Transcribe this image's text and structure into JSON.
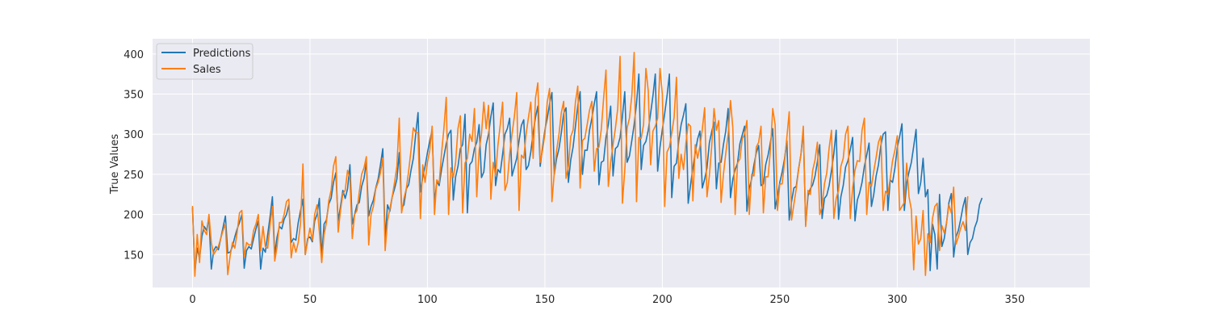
{
  "chart_data": {
    "type": "line",
    "title": "",
    "xlabel": "",
    "ylabel": "True Values",
    "xlim": [
      -17,
      382
    ],
    "ylim": [
      109,
      419
    ],
    "xticks": [
      0,
      50,
      100,
      150,
      200,
      250,
      300,
      350
    ],
    "yticks": [
      150,
      200,
      250,
      300,
      350,
      400
    ],
    "grid": true,
    "legend_position": "top-left",
    "x_start": 0,
    "x_step": 1,
    "series": [
      {
        "name": "Predictions",
        "color": "#1f77b4",
        "values": [
          208,
          128,
          158,
          145,
          173,
          185,
          180,
          197,
          132,
          155,
          160,
          156,
          170,
          184,
          198,
          152,
          153,
          160,
          172,
          182,
          190,
          200,
          133,
          155,
          160,
          157,
          170,
          182,
          192,
          132,
          158,
          153,
          175,
          197,
          222,
          150,
          172,
          185,
          182,
          194,
          200,
          212,
          165,
          170,
          168,
          190,
          205,
          219,
          150,
          170,
          172,
          166,
          192,
          200,
          220,
          148,
          188,
          193,
          213,
          220,
          240,
          252,
          192,
          210,
          230,
          220,
          232,
          262,
          188,
          200,
          212,
          215,
          235,
          245,
          265,
          198,
          210,
          218,
          233,
          244,
          262,
          282,
          168,
          212,
          204,
          222,
          232,
          244,
          277,
          208,
          212,
          232,
          237,
          255,
          270,
          300,
          327,
          228,
          246,
          260,
          277,
          292,
          305,
          214,
          241,
          236,
          256,
          272,
          288,
          300,
          305,
          218,
          247,
          260,
          282,
          287,
          325,
          202,
          262,
          266,
          282,
          290,
          312,
          246,
          253,
          287,
          300,
          322,
          339,
          236,
          256,
          252,
          275,
          300,
          307,
          320,
          248,
          259,
          270,
          292,
          311,
          318,
          256,
          261,
          278,
          302,
          321,
          335,
          260,
          284,
          305,
          320,
          338,
          352,
          250,
          270,
          282,
          302,
          326,
          333,
          240,
          268,
          284,
          310,
          336,
          353,
          250,
          280,
          280,
          305,
          320,
          338,
          353,
          237,
          265,
          267,
          296,
          312,
          335,
          248,
          282,
          285,
          296,
          322,
          353,
          265,
          273,
          292,
          312,
          338,
          375,
          256,
          286,
          291,
          305,
          326,
          348,
          375,
          254,
          284,
          306,
          326,
          348,
          375,
          221,
          260,
          264,
          292,
          312,
          324,
          338,
          214,
          237,
          258,
          277,
          294,
          304,
          233,
          244,
          258,
          289,
          303,
          315,
          232,
          264,
          265,
          287,
          304,
          332,
          221,
          244,
          256,
          264,
          288,
          299,
          310,
          204,
          233,
          244,
          262,
          277,
          286,
          236,
          238,
          262,
          274,
          290,
          307,
          207,
          223,
          240,
          253,
          269,
          292,
          193,
          216,
          233,
          235,
          257,
          275,
          305,
          187,
          223,
          232,
          237,
          248,
          266,
          287,
          195,
          220,
          224,
          236,
          255,
          276,
          305,
          194,
          222,
          236,
          259,
          267,
          281,
          296,
          192,
          218,
          227,
          240,
          260,
          274,
          289,
          210,
          225,
          248,
          262,
          286,
          300,
          303,
          205,
          243,
          240,
          258,
          283,
          297,
          313,
          205,
          239,
          253,
          265,
          285,
          306,
          226,
          240,
          270,
          222,
          231,
          130,
          188,
          175,
          132,
          225,
          160,
          170,
          190,
          215,
          226,
          147,
          172,
          180,
          194,
          210,
          221,
          150,
          165,
          170,
          184,
          192,
          212,
          220
        ]
      },
      {
        "name": "Sales",
        "color": "#ff7f0e",
        "values": [
          210,
          123,
          175,
          140,
          192,
          180,
          175,
          200,
          165,
          150,
          155,
          160,
          170,
          180,
          188,
          125,
          148,
          165,
          158,
          178,
          202,
          205,
          147,
          165,
          162,
          162,
          180,
          188,
          200,
          155,
          185,
          160,
          158,
          187,
          210,
          142,
          160,
          190,
          190,
          200,
          216,
          219,
          146,
          165,
          153,
          165,
          190,
          263,
          150,
          167,
          183,
          168,
          200,
          212,
          178,
          140,
          175,
          190,
          217,
          230,
          260,
          272,
          178,
          205,
          226,
          230,
          255,
          245,
          170,
          200,
          205,
          228,
          250,
          258,
          272,
          162,
          200,
          210,
          232,
          240,
          252,
          270,
          155,
          192,
          207,
          222,
          240,
          260,
          320,
          202,
          220,
          232,
          254,
          280,
          308,
          302,
          302,
          195,
          262,
          240,
          265,
          280,
          310,
          200,
          243,
          239,
          276,
          307,
          346,
          200,
          258,
          246,
          265,
          307,
          323,
          202,
          264,
          270,
          300,
          291,
          332,
          222,
          280,
          300,
          340,
          307,
          336,
          219,
          265,
          248,
          286,
          312,
          340,
          230,
          240,
          275,
          300,
          322,
          352,
          205,
          274,
          270,
          300,
          321,
          340,
          270,
          345,
          364,
          265,
          280,
          300,
          340,
          357,
          216,
          252,
          280,
          300,
          327,
          341,
          245,
          260,
          297,
          305,
          340,
          360,
          233,
          292,
          295,
          312,
          330,
          341,
          254,
          282,
          284,
          306,
          345,
          380,
          235,
          265,
          287,
          307,
          332,
          397,
          214,
          255,
          308,
          320,
          348,
          402,
          216,
          296,
          295,
          312,
          382,
          354,
          262,
          304,
          310,
          320,
          382,
          350,
          210,
          278,
          284,
          301,
          321,
          371,
          245,
          275,
          256,
          288,
          313,
          310,
          217,
          287,
          270,
          285,
          306,
          333,
          222,
          248,
          285,
          332,
          305,
          317,
          215,
          250,
          276,
          300,
          342,
          308,
          200,
          264,
          269,
          294,
          300,
          317,
          200,
          250,
          248,
          284,
          290,
          310,
          202,
          247,
          247,
          280,
          332,
          312,
          205,
          238,
          238,
          265,
          296,
          328,
          193,
          213,
          232,
          256,
          275,
          310,
          185,
          230,
          225,
          255,
          268,
          290,
          200,
          210,
          238,
          252,
          283,
          305,
          195,
          220,
          230,
          260,
          270,
          300,
          310,
          195,
          233,
          255,
          267,
          266,
          305,
          320,
          200,
          240,
          235,
          254,
          271,
          290,
          298,
          205,
          229,
          225,
          245,
          267,
          280,
          298,
          205,
          210,
          215,
          264,
          222,
          206,
          131,
          198,
          163,
          170,
          205,
          124,
          176,
          165,
          195,
          210,
          214,
          155,
          186,
          177,
          190,
          212,
          202,
          234,
          163,
          172,
          183,
          191,
          180,
          222
        ]
      }
    ]
  }
}
